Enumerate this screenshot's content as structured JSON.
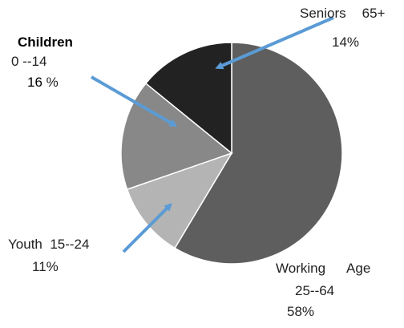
{
  "chart_data": {
    "type": "pie",
    "title": "",
    "slices": [
      {
        "name": "Working Age",
        "range": "25--64",
        "value": 58,
        "label": "58%",
        "color": "#5e5e5e"
      },
      {
        "name": "Youth",
        "range": "15--24",
        "value": 11,
        "label": "11%",
        "color": "#b4b4b4"
      },
      {
        "name": "Children",
        "range": "0 --14",
        "value": 16,
        "label": "16 %",
        "color": "#888888"
      },
      {
        "name": "Seniors",
        "range": "65+",
        "value": 14,
        "label": "14%",
        "color": "#222222"
      }
    ],
    "start": "12 o'clock",
    "direction": "clockwise",
    "legend": "none",
    "arrow_color": "#5b9bd5"
  }
}
